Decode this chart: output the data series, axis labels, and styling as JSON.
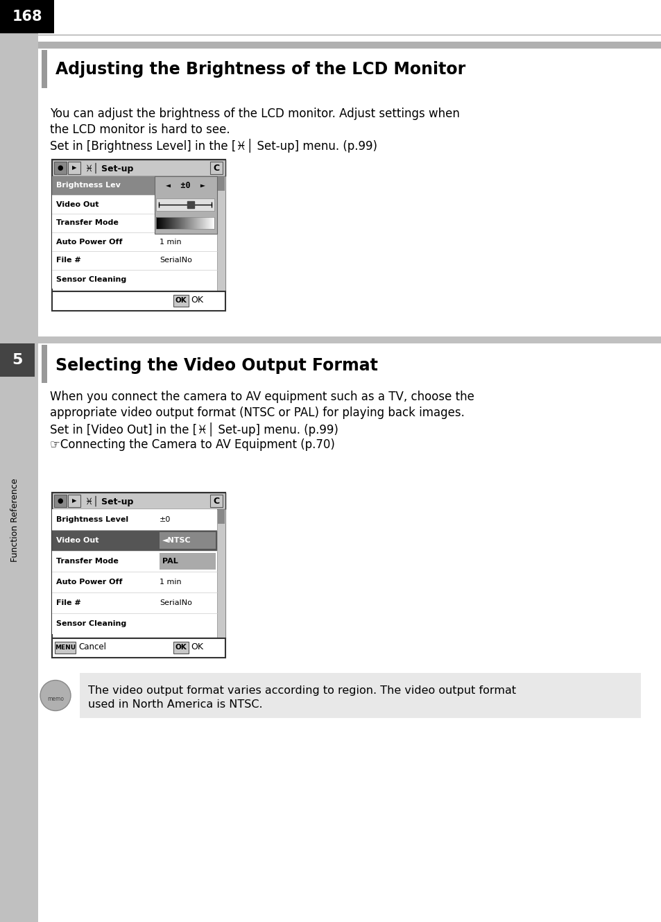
{
  "page_number": "168",
  "bg_color": "#ffffff",
  "sidebar_color": "#c0c0c0",
  "section1_title": "Adjusting the Brightness of the LCD Monitor",
  "section1_body_line1": "You can adjust the brightness of the LCD monitor. Adjust settings when",
  "section1_body_line2": "the LCD monitor is hard to see.",
  "section1_body_line3": "Set in [Brightness Level] in the [♓│ Set-up] menu. (p.99)",
  "section2_title": "Selecting the Video Output Format",
  "section2_body_line1": "When you connect the camera to AV equipment such as a TV, choose the",
  "section2_body_line2": "appropriate video output format (NTSC or PAL) for playing back images.",
  "section2_body_line3": "Set in [Video Out] in the [♓│ Set-up] menu. (p.99)",
  "section2_body_line4": "☞Connecting the Camera to AV Equipment (p.70)",
  "memo_text_line1": "The video output format varies according to region. The video output format",
  "memo_text_line2": "used in North America is NTSC.",
  "memo_bg": "#e8e8e8",
  "sidebar_number_bg": "#000000",
  "sidebar_tab_bg": "#444444"
}
